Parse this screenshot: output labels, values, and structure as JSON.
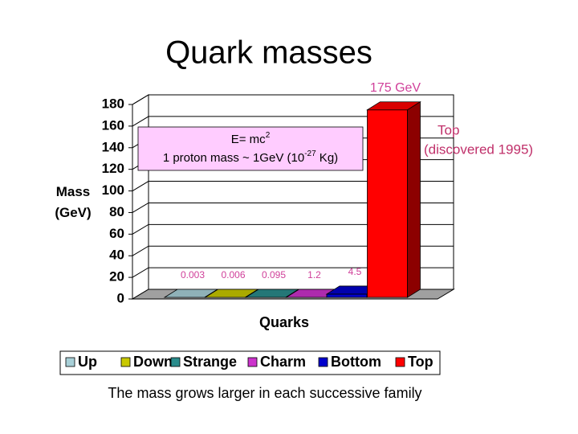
{
  "chart_data": {
    "type": "bar3d",
    "title": "Quark masses",
    "ylabel": "Mass (GeV)",
    "xlabel": "Quarks",
    "categories": [
      "Up",
      "Down",
      "Strange",
      "Charm",
      "Bottom",
      "Top"
    ],
    "values": [
      0.003,
      0.006,
      0.095,
      1.2,
      4.5,
      175
    ],
    "value_labels": [
      "0.003",
      "0.006",
      "0.095",
      "1.2",
      "4.5",
      "175 GeV"
    ],
    "colors": [
      "#a8d0d8",
      "#c8c800",
      "#2a8c8c",
      "#cc33cc",
      "#0000cc",
      "#ff0000"
    ],
    "ylim": [
      0,
      180
    ],
    "yticks": [
      0,
      20,
      40,
      60,
      80,
      100,
      120,
      140,
      160,
      180
    ],
    "grid": true,
    "legend": "bottom",
    "annotation": [
      {
        "text": "E= mc",
        "sup": "2"
      },
      {
        "text": "1 proton mass ~ 1GeV (10",
        "sup": "-27",
        "after": " Kg)"
      }
    ],
    "top_note": [
      "Top",
      "(discovered 1995)"
    ],
    "caption": "The mass grows larger in each successive family"
  }
}
